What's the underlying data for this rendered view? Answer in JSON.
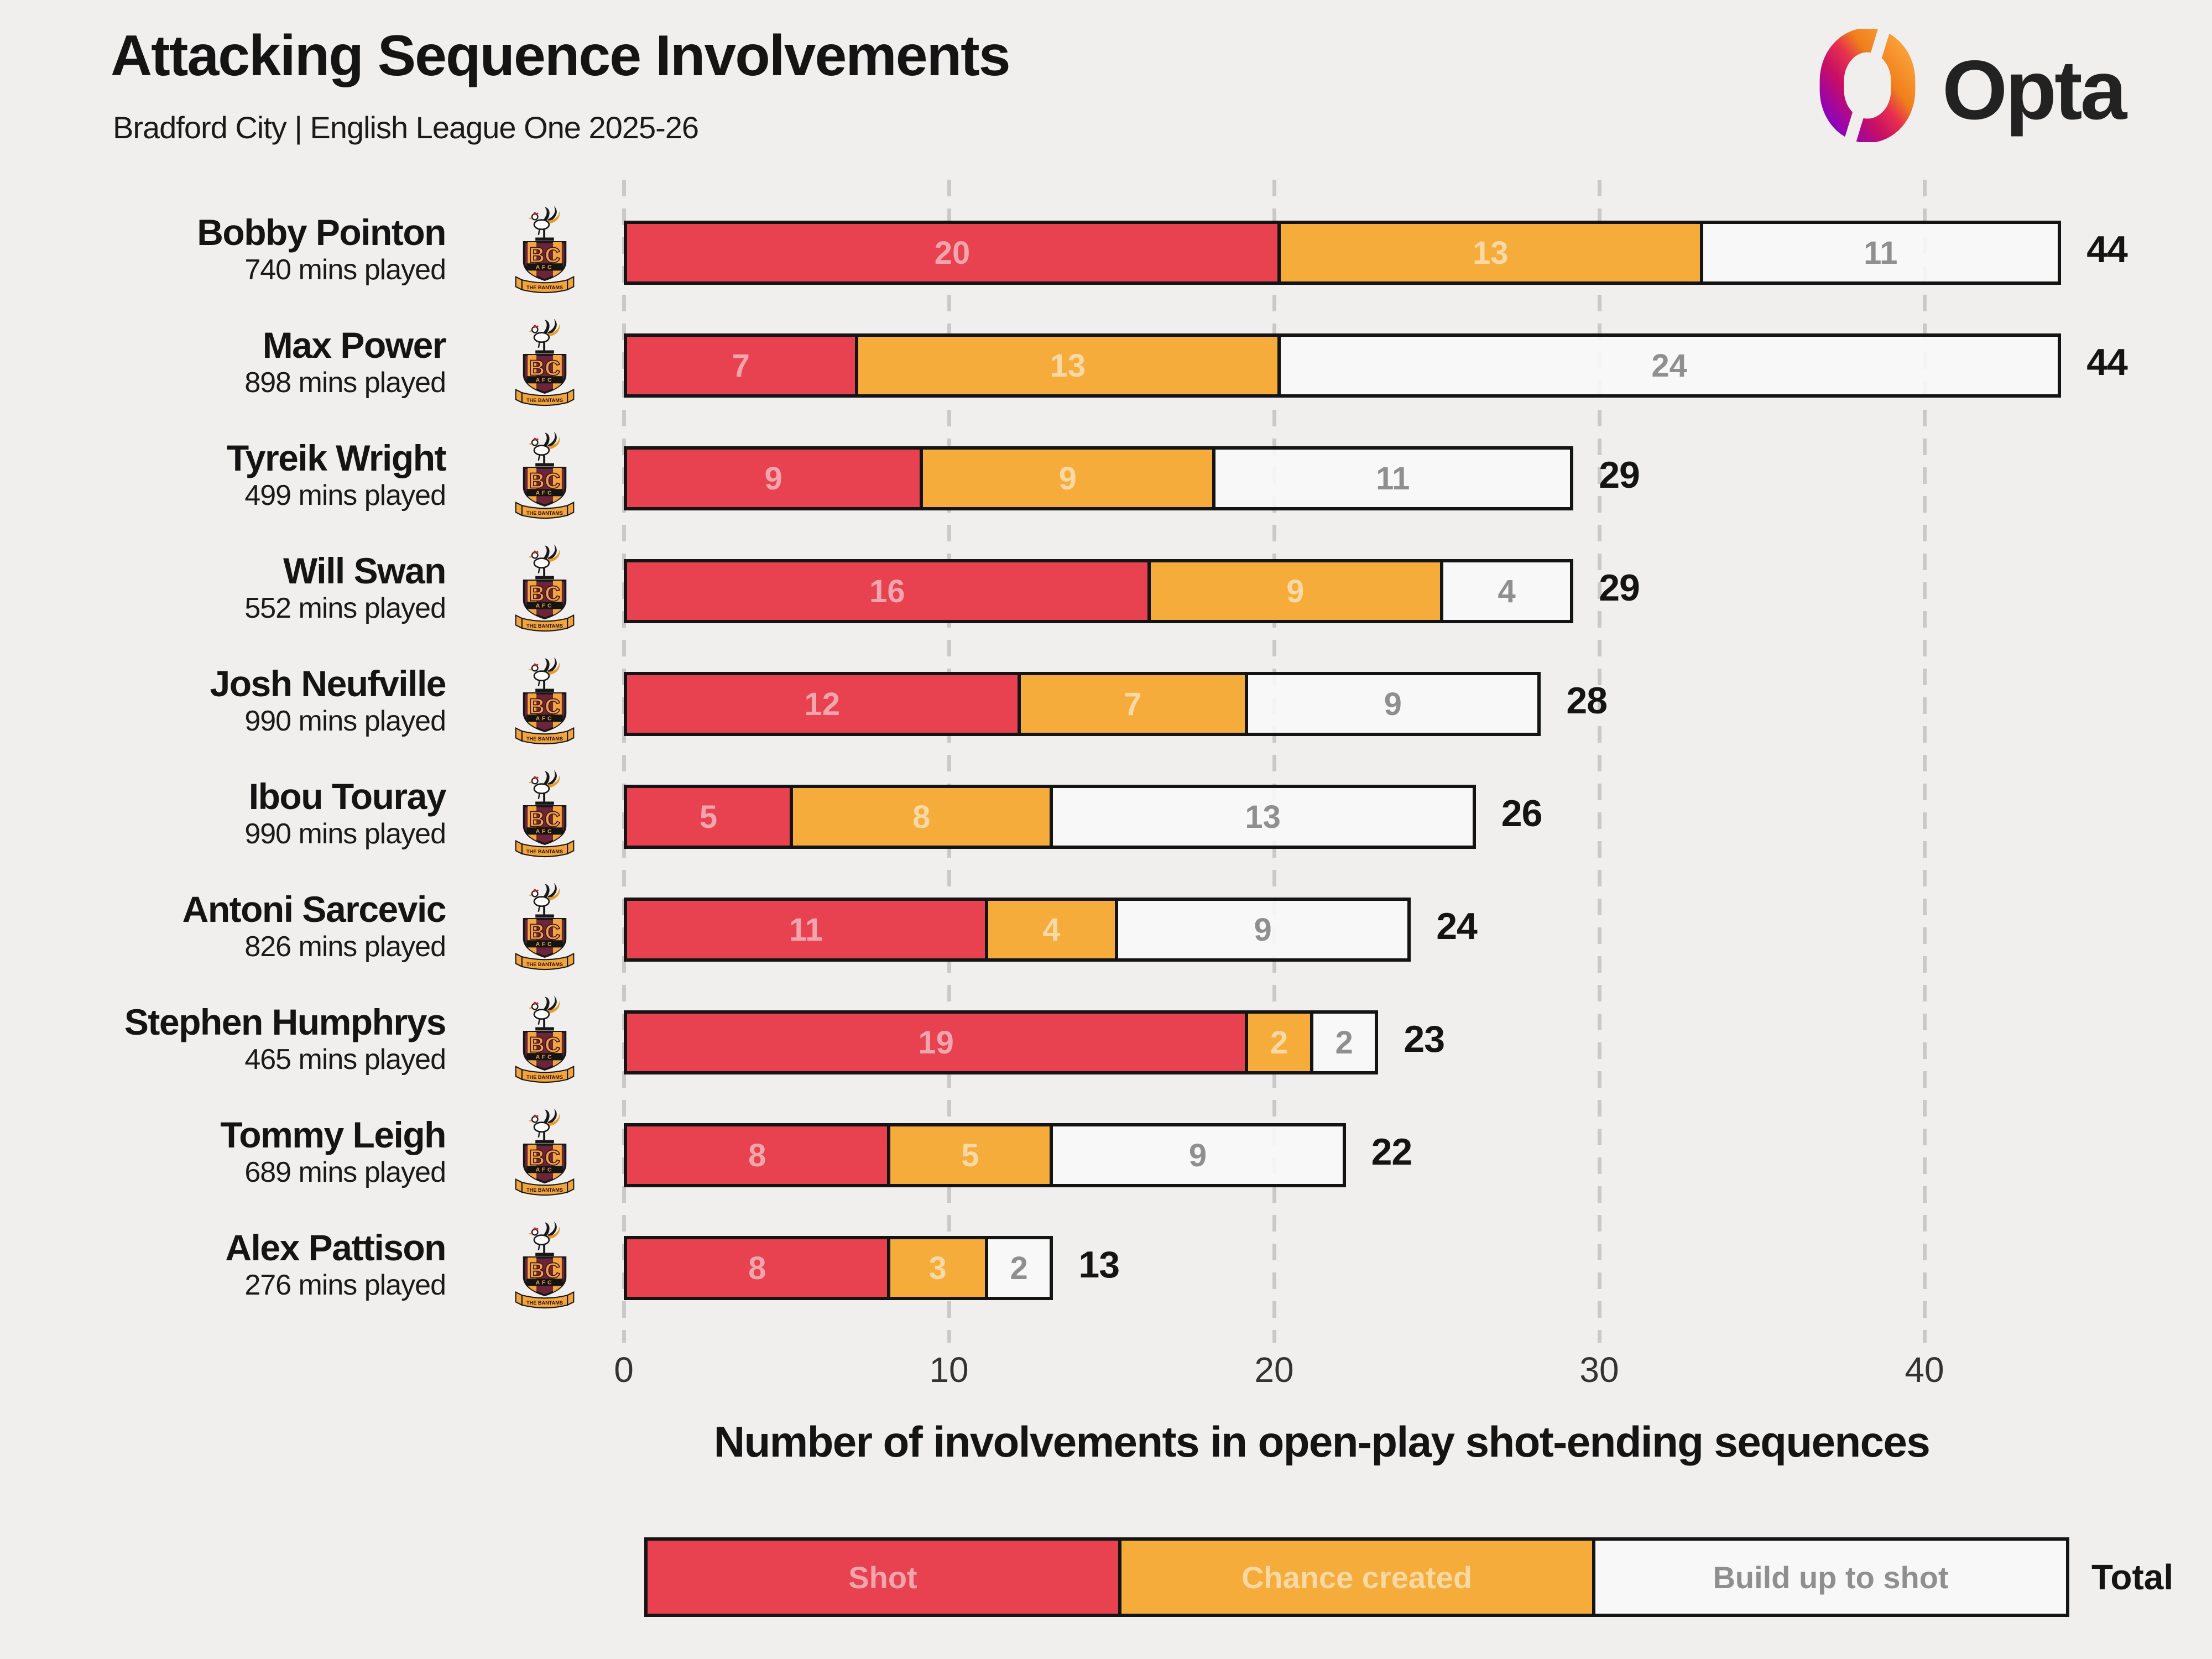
{
  "header": {
    "title": "Attacking Sequence Involvements",
    "subtitle": "Bradford City | English League One 2025-26",
    "brand": "Opta"
  },
  "badge": {
    "club": "Bradford City AFC crest",
    "letters": "BC",
    "afc": "AFC",
    "banner": "THE BANTAMS"
  },
  "chart_data": {
    "type": "bar",
    "orientation": "horizontal",
    "stacked": true,
    "title": "Attacking Sequence Involvements",
    "xlabel": "Number of involvements in open-play shot-ending sequences",
    "x_ticks": [
      0,
      10,
      20,
      30,
      40
    ],
    "axis_max": 40,
    "grid": "dashed-vertical",
    "legend_position": "bottom",
    "total_label": "Total",
    "series": [
      {
        "name": "Shot",
        "color": "#e8414f",
        "label_color": "#f2a5ac"
      },
      {
        "name": "Chance created",
        "color": "#f6ac3a",
        "label_color": "#fbd9a4"
      },
      {
        "name": "Build up to shot",
        "color": "#f8f8f8",
        "label_color": "#8f8f8f"
      }
    ],
    "players": [
      {
        "name": "Bobby Pointon",
        "mins": "740 mins played",
        "values": [
          20,
          13,
          11
        ],
        "total": 44
      },
      {
        "name": "Max Power",
        "mins": "898 mins played",
        "values": [
          7,
          13,
          24
        ],
        "total": 44
      },
      {
        "name": "Tyreik Wright",
        "mins": "499 mins played",
        "values": [
          9,
          9,
          11
        ],
        "total": 29
      },
      {
        "name": "Will Swan",
        "mins": "552 mins played",
        "values": [
          16,
          9,
          4
        ],
        "total": 29
      },
      {
        "name": "Josh Neufville",
        "mins": "990 mins played",
        "values": [
          12,
          7,
          9
        ],
        "total": 28
      },
      {
        "name": "Ibou Touray",
        "mins": "990 mins played",
        "values": [
          5,
          8,
          13
        ],
        "total": 26
      },
      {
        "name": "Antoni Sarcevic",
        "mins": "826 mins played",
        "values": [
          11,
          4,
          9
        ],
        "total": 24
      },
      {
        "name": "Stephen Humphrys",
        "mins": "465 mins played",
        "values": [
          19,
          2,
          2
        ],
        "total": 23
      },
      {
        "name": "Tommy Leigh",
        "mins": "689 mins played",
        "values": [
          8,
          5,
          9
        ],
        "total": 22
      },
      {
        "name": "Alex Pattison",
        "mins": "276 mins played",
        "values": [
          8,
          3,
          2
        ],
        "total": 13
      }
    ]
  }
}
